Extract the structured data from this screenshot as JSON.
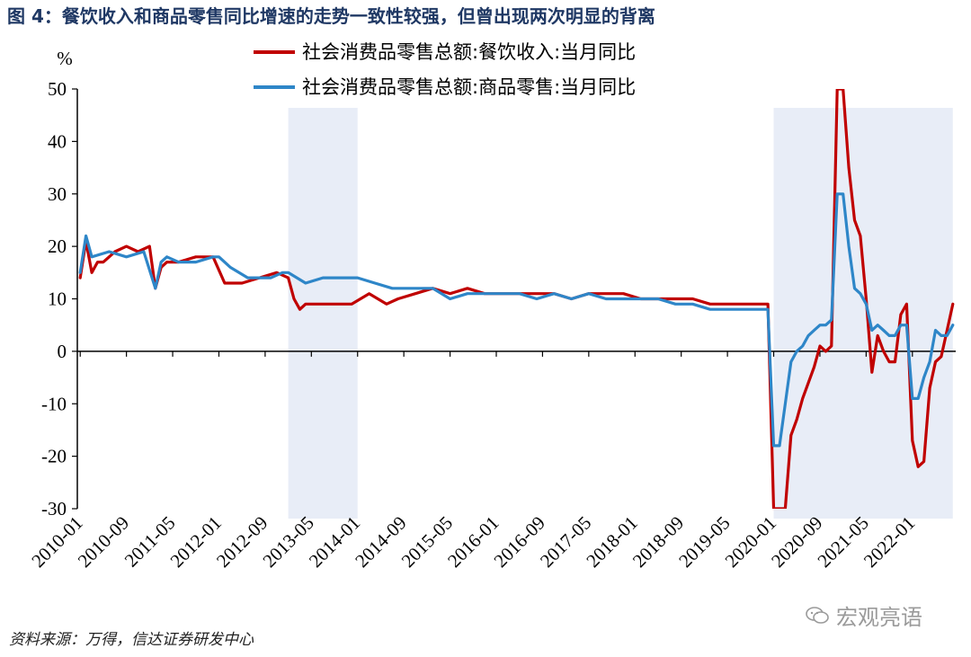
{
  "figure": {
    "title": "图 4：餐饮收入和商品零售同比增速的走势一致性较强，但曾出现两次明显的背离",
    "source": "资料来源：万得，信达证券研发中心",
    "watermark": "宏观亮语"
  },
  "colors": {
    "series_catering": "#c00000",
    "series_retail": "#2e86c8",
    "highlight_band": "#e8edf7",
    "title": "#1f3864"
  },
  "icons": {
    "watermark": "wechat-icon"
  },
  "chart_data": {
    "type": "line",
    "ylabel": "%",
    "ylim": [
      -30,
      50
    ],
    "yticks": [
      -30,
      -20,
      -10,
      0,
      10,
      20,
      30,
      40,
      50
    ],
    "x_range": [
      "2010-01",
      "2022-08"
    ],
    "xtick_labels": [
      "2010-01",
      "2010-09",
      "2011-05",
      "2012-01",
      "2012-09",
      "2013-05",
      "2014-01",
      "2014-09",
      "2015-05",
      "2016-01",
      "2016-09",
      "2017-05",
      "2018-01",
      "2018-09",
      "2019-05",
      "2020-01",
      "2020-09",
      "2021-05",
      "2022-01"
    ],
    "grid": false,
    "legend_position": "top-right",
    "highlight_ranges": [
      [
        "2013-01",
        "2014-01"
      ],
      [
        "2020-01",
        "2022-08"
      ]
    ],
    "series": [
      {
        "name": "社会消费品零售总额:餐饮收入:当月同比",
        "x": [
          "2010-01",
          "2010-02",
          "2010-03",
          "2010-04",
          "2010-05",
          "2010-06",
          "2010-07",
          "2010-09",
          "2010-11",
          "2011-01",
          "2011-02",
          "2011-03",
          "2011-04",
          "2011-06",
          "2011-09",
          "2011-12",
          "2012-02",
          "2012-03",
          "2012-05",
          "2012-08",
          "2012-11",
          "2013-01",
          "2013-02",
          "2013-03",
          "2013-04",
          "2013-06",
          "2013-08",
          "2013-10",
          "2013-12",
          "2014-03",
          "2014-06",
          "2014-08",
          "2014-11",
          "2015-02",
          "2015-05",
          "2015-08",
          "2015-11",
          "2016-02",
          "2016-05",
          "2016-08",
          "2016-11",
          "2017-02",
          "2017-05",
          "2017-08",
          "2017-11",
          "2018-02",
          "2018-05",
          "2018-08",
          "2018-11",
          "2019-02",
          "2019-05",
          "2019-08",
          "2019-11",
          "2019-12",
          "2020-01",
          "2020-02",
          "2020-03",
          "2020-04",
          "2020-05",
          "2020-06",
          "2020-07",
          "2020-08",
          "2020-09",
          "2020-10",
          "2020-11",
          "2020-12",
          "2021-01",
          "2021-02",
          "2021-03",
          "2021-04",
          "2021-05",
          "2021-06",
          "2021-07",
          "2021-08",
          "2021-09",
          "2021-10",
          "2021-11",
          "2021-12",
          "2022-01",
          "2022-02",
          "2022-03",
          "2022-04",
          "2022-05",
          "2022-06",
          "2022-07",
          "2022-08"
        ],
        "values": [
          14,
          21,
          15,
          17,
          17,
          18,
          19,
          20,
          19,
          20,
          12,
          16,
          17,
          17,
          18,
          18,
          13,
          13,
          13,
          14,
          15,
          14,
          10,
          8,
          9,
          9,
          9,
          9,
          9,
          11,
          9,
          10,
          11,
          12,
          11,
          12,
          11,
          11,
          11,
          11,
          11,
          10,
          11,
          11,
          11,
          10,
          10,
          10,
          10,
          9,
          9,
          9,
          9,
          9,
          -30,
          -30,
          -30,
          -16,
          -13,
          -9,
          -6,
          -3,
          1,
          0,
          1,
          50,
          50,
          35,
          25,
          22,
          10,
          -4,
          3,
          0,
          -2,
          -2,
          7,
          9,
          -17,
          -22,
          -21,
          -7,
          -2,
          -1,
          4,
          9
        ]
      },
      {
        "name": "社会消费品零售总额:商品零售:当月同比",
        "x": [
          "2010-01",
          "2010-02",
          "2010-03",
          "2010-06",
          "2010-09",
          "2010-12",
          "2011-02",
          "2011-03",
          "2011-04",
          "2011-06",
          "2011-09",
          "2011-12",
          "2012-01",
          "2012-03",
          "2012-06",
          "2012-08",
          "2012-10",
          "2012-12",
          "2013-01",
          "2013-04",
          "2013-07",
          "2013-10",
          "2014-01",
          "2014-04",
          "2014-07",
          "2014-10",
          "2015-02",
          "2015-05",
          "2015-08",
          "2015-11",
          "2016-02",
          "2016-05",
          "2016-08",
          "2016-11",
          "2017-02",
          "2017-05",
          "2017-08",
          "2017-11",
          "2018-02",
          "2018-05",
          "2018-08",
          "2018-11",
          "2019-02",
          "2019-05",
          "2019-07",
          "2019-09",
          "2019-11",
          "2019-12",
          "2020-01",
          "2020-02",
          "2020-03",
          "2020-04",
          "2020-05",
          "2020-06",
          "2020-07",
          "2020-08",
          "2020-09",
          "2020-10",
          "2020-11",
          "2020-12",
          "2021-01",
          "2021-02",
          "2021-03",
          "2021-04",
          "2021-05",
          "2021-06",
          "2021-07",
          "2021-08",
          "2021-09",
          "2021-10",
          "2021-11",
          "2021-12",
          "2022-01",
          "2022-02",
          "2022-03",
          "2022-04",
          "2022-05",
          "2022-06",
          "2022-07",
          "2022-08"
        ],
        "values": [
          15,
          22,
          18,
          19,
          18,
          19,
          12,
          17,
          18,
          17,
          17,
          18,
          18,
          16,
          14,
          14,
          14,
          15,
          15,
          13,
          14,
          14,
          14,
          13,
          12,
          12,
          12,
          10,
          11,
          11,
          11,
          11,
          10,
          11,
          10,
          11,
          10,
          10,
          10,
          10,
          9,
          9,
          8,
          8,
          8,
          8,
          8,
          8,
          -18,
          -18,
          -10,
          -2,
          0,
          1,
          3,
          4,
          5,
          5,
          6,
          30,
          30,
          20,
          12,
          11,
          9,
          4,
          5,
          4,
          3,
          3,
          5,
          5,
          -9,
          -9,
          -5,
          -2,
          4,
          3,
          3,
          5
        ]
      }
    ]
  }
}
